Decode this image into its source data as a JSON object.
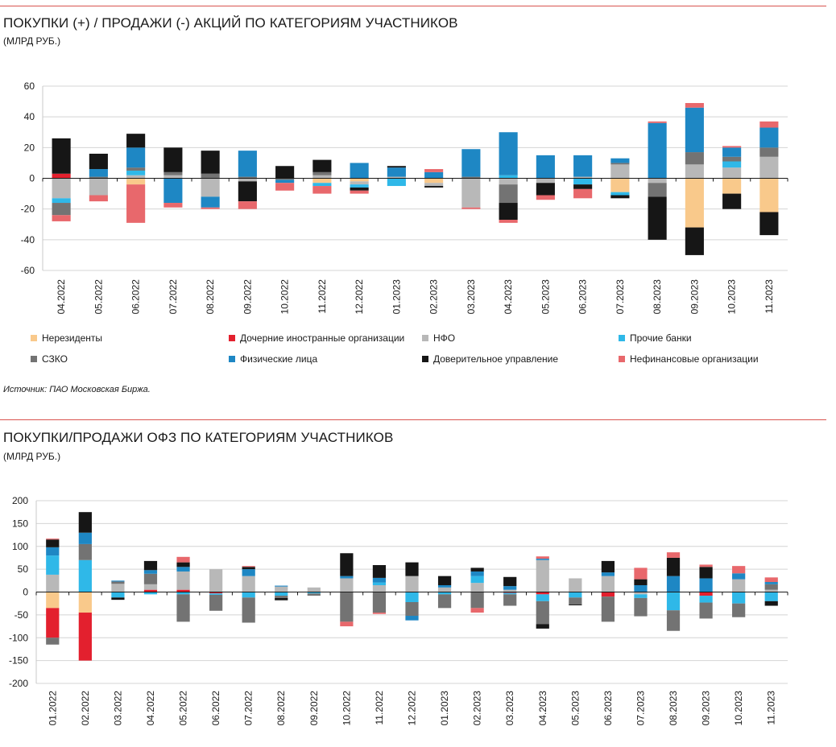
{
  "chart1": {
    "title": "ПОКУПКИ (+) / ПРОДАЖИ (-) АКЦИЙ ПО КАТЕГОРИЯМ УЧАСТНИКОВ",
    "subtitle": "(МЛРД РУБ.)",
    "source": "Источник: ПАО Московская Биржа."
  },
  "chart2": {
    "title": "ПОКУПКИ/ПРОДАЖИ ОФЗ ПО КАТЕГОРИЯМ УЧАСТНИКОВ",
    "subtitle": "(МЛРД РУБ.)"
  },
  "legend": {
    "items": [
      {
        "label": "Нерезиденты",
        "color": "#f9c98b"
      },
      {
        "label": "Дочерние иностранные организации",
        "color": "#e3202e"
      },
      {
        "label": "НФО",
        "color": "#b8b8b8"
      },
      {
        "label": "Прочие банки",
        "color": "#2fb8e8"
      },
      {
        "label": "СЗКО",
        "color": "#737373"
      },
      {
        "label": "Физические лица",
        "color": "#1e87c4"
      },
      {
        "label": "Доверительное управление",
        "color": "#161616"
      },
      {
        "label": "Нефинансовые организации",
        "color": "#e8686c"
      }
    ]
  },
  "chart_data": [
    {
      "type": "bar",
      "stacked": true,
      "title": "ПОКУПКИ (+) / ПРОДАЖИ (-) АКЦИЙ ПО КАТЕГОРИЯМ УЧАСТНИКОВ",
      "ylabel": "(МЛРД РУБ.)",
      "ylim": [
        -60,
        60
      ],
      "yticks": [
        60,
        40,
        20,
        0,
        -20,
        -40,
        -60
      ],
      "categories": [
        "04.2022",
        "05.2022",
        "06.2022",
        "07.2022",
        "08.2022",
        "09.2022",
        "10.2022",
        "11.2022",
        "12.2022",
        "01.2023",
        "02.2023",
        "03.2023",
        "04.2023",
        "05.2023",
        "06.2023",
        "07.2023",
        "08.2023",
        "09.2023",
        "10.2023",
        "11.2023"
      ],
      "series": [
        {
          "name": "Нерезиденты",
          "color": "#f9c98b",
          "values": [
            0,
            0,
            -4,
            0,
            0,
            0,
            0,
            -3,
            -2,
            0,
            -3,
            0,
            0,
            0,
            0,
            -9,
            0,
            -32,
            -10,
            -22
          ]
        },
        {
          "name": "Дочерние иностранные организации",
          "color": "#e3202e",
          "values": [
            3,
            0,
            0,
            0,
            0,
            0,
            0,
            0,
            0,
            0,
            0,
            0,
            0,
            0,
            0,
            0,
            0,
            0,
            0,
            0
          ]
        },
        {
          "name": "НФО",
          "color": "#b8b8b8",
          "values": [
            -13,
            -11,
            2,
            2,
            -12,
            -2,
            0,
            2,
            -2,
            1,
            -2,
            -19,
            -4,
            -3,
            1,
            9,
            -3,
            9,
            7,
            14
          ]
        },
        {
          "name": "Прочие банки",
          "color": "#2fb8e8",
          "values": [
            -3,
            0,
            3,
            0,
            0,
            0,
            0,
            -2,
            -2,
            -5,
            0,
            0,
            2,
            0,
            -4,
            -2,
            0,
            0,
            4,
            0
          ]
        },
        {
          "name": "СЗКО",
          "color": "#737373",
          "values": [
            -8,
            1,
            2,
            2,
            3,
            1,
            -1,
            2,
            0,
            0,
            0,
            1,
            -12,
            0,
            0,
            1,
            -9,
            8,
            3,
            6
          ]
        },
        {
          "name": "Физические лица",
          "color": "#1e87c4",
          "values": [
            0,
            5,
            13,
            -16,
            -7,
            17,
            -2,
            0,
            10,
            6,
            4,
            18,
            28,
            15,
            14,
            3,
            36,
            29,
            6,
            13
          ]
        },
        {
          "name": "Доверительное управление",
          "color": "#161616",
          "values": [
            23,
            10,
            9,
            16,
            15,
            -13,
            8,
            8,
            -2,
            1,
            -1,
            0,
            -11,
            -8,
            -3,
            -2,
            -28,
            -18,
            -10,
            -15
          ]
        },
        {
          "name": "Нефинансовые организации",
          "color": "#e8686c",
          "values": [
            -4,
            -4,
            -25,
            -3,
            -1,
            -5,
            -5,
            -5,
            -2,
            0,
            2,
            -1,
            -2,
            -3,
            -6,
            0,
            1,
            3,
            1,
            4
          ]
        }
      ]
    },
    {
      "type": "bar",
      "stacked": true,
      "title": "ПОКУПКИ/ПРОДАЖИ ОФЗ ПО КАТЕГОРИЯМ УЧАСТНИКОВ",
      "ylabel": "(МЛРД РУБ.)",
      "ylim": [
        -200,
        200
      ],
      "yticks": [
        200,
        150,
        100,
        50,
        0,
        -50,
        -100,
        -150,
        -200
      ],
      "categories": [
        "01.2022",
        "02.2022",
        "03.2022",
        "04.2022",
        "05.2022",
        "06.2022",
        "07.2022",
        "08.2022",
        "09.2022",
        "10.2022",
        "11.2022",
        "12.2022",
        "01.2023",
        "02.2023",
        "03.2023",
        "04.2023",
        "05.2023",
        "06.2023",
        "07.2023",
        "08.2023",
        "09.2023",
        "10.2023",
        "11.2023"
      ],
      "series": [
        {
          "name": "Нерезиденты",
          "color": "#f9c98b",
          "values": [
            -35,
            -45,
            0,
            0,
            0,
            0,
            0,
            0,
            0,
            0,
            0,
            0,
            0,
            0,
            0,
            0,
            0,
            0,
            0,
            0,
            0,
            0,
            0
          ]
        },
        {
          "name": "Дочерние иностранные организации",
          "color": "#e3202e",
          "values": [
            -65,
            -105,
            0,
            5,
            5,
            -3,
            0,
            0,
            0,
            0,
            0,
            0,
            0,
            0,
            -2,
            -5,
            0,
            -10,
            0,
            0,
            -8,
            0,
            0
          ]
        },
        {
          "name": "НФО",
          "color": "#b8b8b8",
          "values": [
            38,
            0,
            18,
            12,
            40,
            50,
            35,
            12,
            10,
            30,
            15,
            35,
            10,
            20,
            5,
            70,
            30,
            35,
            -5,
            0,
            0,
            28,
            5
          ]
        },
        {
          "name": "Прочие банки",
          "color": "#2fb8e8",
          "values": [
            42,
            70,
            -12,
            -5,
            -5,
            -3,
            -12,
            -8,
            -3,
            0,
            6,
            -22,
            -5,
            15,
            -3,
            -15,
            -12,
            0,
            -8,
            -40,
            -15,
            -25,
            -20
          ]
        },
        {
          "name": "СЗКО",
          "color": "#737373",
          "values": [
            -15,
            35,
            5,
            23,
            -60,
            -35,
            -55,
            -5,
            -5,
            -65,
            -45,
            -30,
            -30,
            -35,
            -25,
            -50,
            -15,
            -55,
            -40,
            -45,
            -35,
            -30,
            12
          ]
        },
        {
          "name": "Физические лица",
          "color": "#1e87c4",
          "values": [
            18,
            25,
            2,
            8,
            10,
            0,
            15,
            2,
            0,
            5,
            10,
            -10,
            5,
            10,
            8,
            3,
            0,
            8,
            15,
            35,
            30,
            13,
            5
          ]
        },
        {
          "name": "Доверительное управление",
          "color": "#161616",
          "values": [
            17,
            45,
            -5,
            20,
            10,
            0,
            5,
            -5,
            0,
            50,
            28,
            30,
            20,
            8,
            20,
            -10,
            -2,
            25,
            13,
            40,
            25,
            0,
            -10
          ]
        },
        {
          "name": "Нефинансовые организации",
          "color": "#e8686c",
          "values": [
            2,
            0,
            0,
            0,
            12,
            0,
            2,
            0,
            0,
            -10,
            -3,
            0,
            0,
            -10,
            0,
            5,
            0,
            0,
            25,
            12,
            5,
            16,
            10
          ]
        }
      ]
    }
  ]
}
